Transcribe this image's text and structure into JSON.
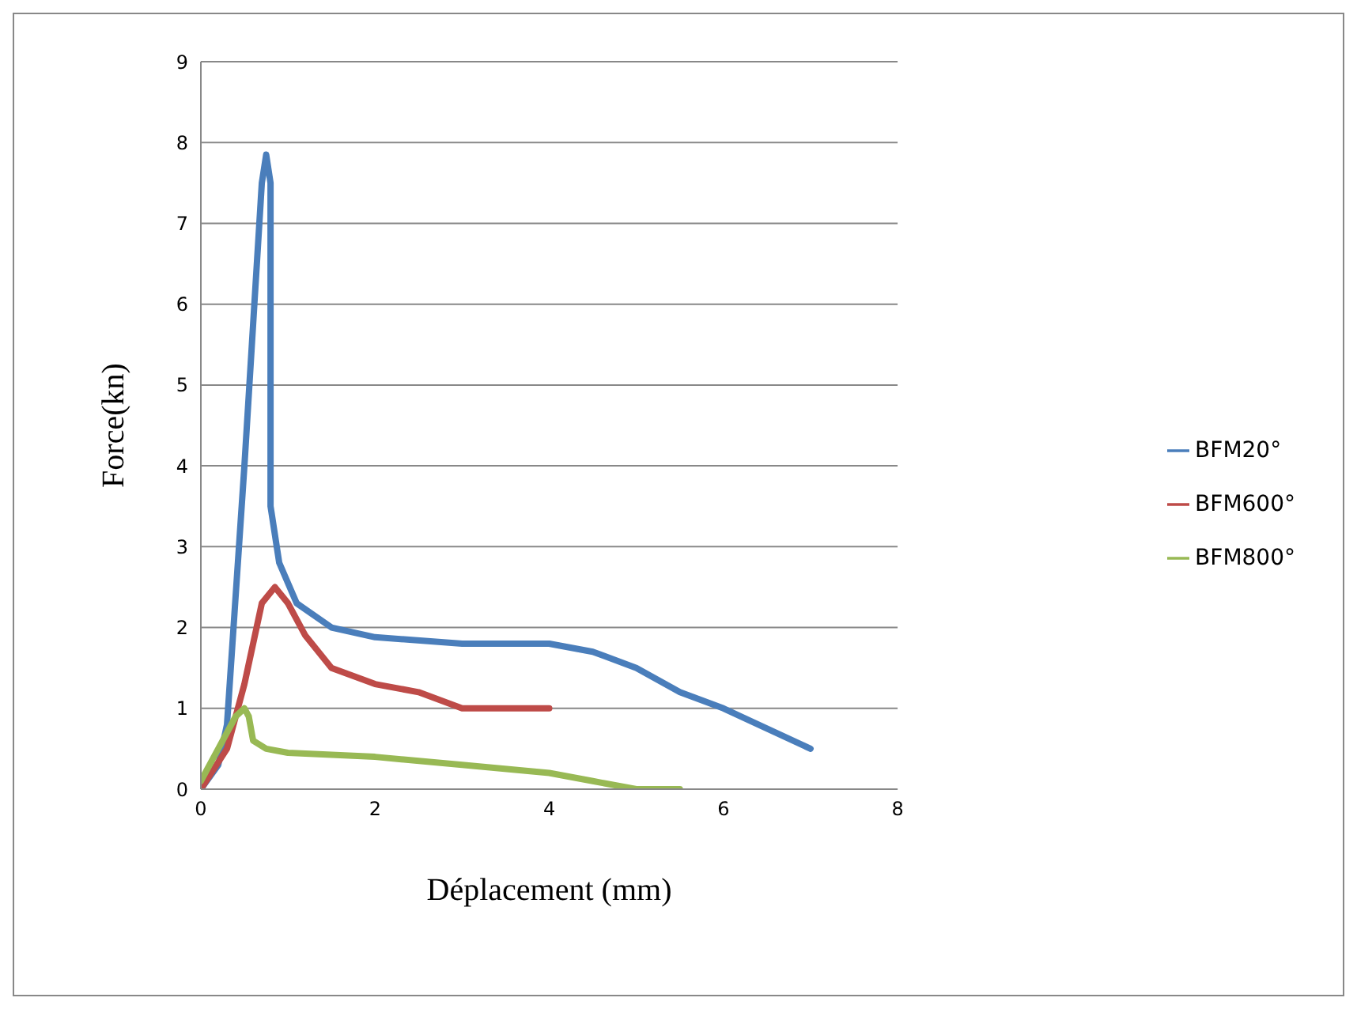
{
  "chart_data": {
    "type": "line",
    "xlabel": "Déplacement (mm)",
    "ylabel": "Force(kn)",
    "xlim": [
      0,
      8
    ],
    "xticks": [
      0,
      2,
      4,
      6,
      8
    ],
    "ylim": [
      0,
      9
    ],
    "yticks": [
      0,
      1,
      2,
      3,
      4,
      5,
      6,
      7,
      8,
      9
    ],
    "grid": "y",
    "legend": "right",
    "marker": "none",
    "line_style": "solid",
    "series": [
      {
        "name": "BFM20°",
        "color": "#4a7ebb",
        "x": [
          0,
          0.2,
          0.3,
          0.5,
          0.7,
          0.75,
          0.8,
          0.8,
          0.8,
          0.9,
          1.1,
          1.5,
          2,
          3,
          4,
          4.5,
          5,
          5.5,
          6,
          7
        ],
        "values": [
          0,
          0.3,
          0.8,
          4,
          7.5,
          7.85,
          7.5,
          4,
          3.5,
          2.8,
          2.3,
          2,
          1.88,
          1.8,
          1.8,
          1.7,
          1.5,
          1.2,
          1,
          0.5
        ]
      },
      {
        "name": "BFM600°",
        "color": "#be4b48",
        "x": [
          0,
          0.3,
          0.5,
          0.7,
          0.85,
          1,
          1.2,
          1.5,
          2,
          2.5,
          3,
          3.5,
          4
        ],
        "values": [
          0,
          0.5,
          1.3,
          2.3,
          2.5,
          2.3,
          1.9,
          1.5,
          1.3,
          1.2,
          1,
          1,
          1
        ]
      },
      {
        "name": "BFM800°",
        "color": "#98b954",
        "x": [
          0,
          0.2,
          0.4,
          0.5,
          0.55,
          0.6,
          0.75,
          1,
          2,
          3,
          4,
          4.5,
          5,
          5.5
        ],
        "values": [
          0.1,
          0.5,
          0.9,
          1,
          0.9,
          0.6,
          0.5,
          0.45,
          0.4,
          0.3,
          0.2,
          0.1,
          0,
          0
        ]
      }
    ]
  }
}
